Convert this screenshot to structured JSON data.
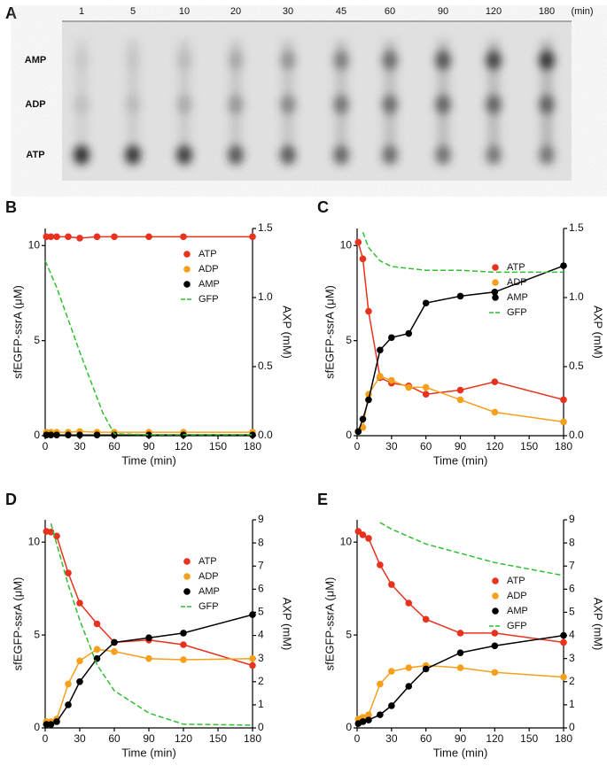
{
  "gel": {
    "panel": "A",
    "lanes": [
      "1",
      "5",
      "10",
      "20",
      "30",
      "45",
      "60",
      "90",
      "120",
      "180"
    ],
    "unit": "(min)",
    "bands": [
      "AMP",
      "ADP",
      "ATP"
    ]
  },
  "chart_data": [
    {
      "type": "line",
      "panel": "B",
      "xlabel": "Time (min)",
      "ylabel": "sfEGFP-ssrA (μM)",
      "y2label": "AXP (mM)",
      "x": [
        1,
        5,
        10,
        20,
        30,
        45,
        60,
        90,
        120,
        180
      ],
      "xlim": [
        0,
        180
      ],
      "xticks": [
        0,
        30,
        60,
        90,
        120,
        150,
        180
      ],
      "ylim": [
        0,
        10.9
      ],
      "yticks": [
        0,
        5,
        10
      ],
      "y2lim": [
        0,
        1.5
      ],
      "y2ticks": [
        {
          "value": 0,
          "label": "0.0"
        },
        0.5,
        {
          "value": 1,
          "label": "1.0"
        },
        1.5
      ],
      "series": [
        {
          "name": "ATP",
          "color": "#e8321e",
          "axis": "y2",
          "values": [
            1.44,
            1.44,
            1.44,
            1.44,
            1.43,
            1.44,
            1.44,
            1.44,
            1.44,
            1.44
          ]
        },
        {
          "name": "ADP",
          "color": "#f5a01a",
          "axis": "y2",
          "values": [
            0.025,
            0.025,
            0.025,
            0.025,
            0.03,
            0.025,
            0.025,
            0.025,
            0.025,
            0.025
          ]
        },
        {
          "name": "AMP",
          "color": "#000000",
          "axis": "y2",
          "values": [
            0.005,
            0.005,
            0.005,
            0.005,
            0.005,
            0.005,
            0.005,
            0.005,
            0.005,
            0.005
          ]
        },
        {
          "name": "GFP",
          "color": "#2fbf2f",
          "dashed": true,
          "x": [
            0,
            10,
            20,
            30,
            40,
            50,
            60,
            90,
            120,
            180
          ],
          "values": [
            9.2,
            7.8,
            6.1,
            4.4,
            2.8,
            1.2,
            0.1,
            0.05,
            0.05,
            0.05
          ]
        }
      ]
    },
    {
      "type": "line",
      "panel": "C",
      "xlabel": "Time (min)",
      "ylabel": "sfEGFP-ssrA (μM)",
      "y2label": "AXP (mM)",
      "x": [
        1,
        5,
        10,
        20,
        30,
        45,
        60,
        90,
        120,
        180
      ],
      "xlim": [
        0,
        180
      ],
      "xticks": [
        0,
        30,
        60,
        90,
        120,
        150,
        180
      ],
      "ylim": [
        0,
        10.9
      ],
      "yticks": [
        0,
        5,
        10
      ],
      "y2lim": [
        0,
        1.5
      ],
      "y2ticks": [
        {
          "value": 0,
          "label": "0.0"
        },
        0.5,
        {
          "value": 1,
          "label": "1.0"
        },
        1.5
      ],
      "series": [
        {
          "name": "ATP",
          "color": "#e8321e",
          "axis": "y2",
          "values": [
            1.4,
            1.28,
            0.9,
            0.42,
            0.38,
            0.36,
            0.3,
            0.33,
            0.39,
            0.26
          ]
        },
        {
          "name": "ADP",
          "color": "#f5a01a",
          "axis": "y2",
          "values": [
            0.03,
            0.06,
            0.3,
            0.43,
            0.4,
            0.35,
            0.35,
            0.26,
            0.17,
            0.1
          ]
        },
        {
          "name": "AMP",
          "color": "#000000",
          "axis": "y2",
          "values": [
            0.03,
            0.12,
            0.26,
            0.62,
            0.71,
            0.74,
            0.96,
            1.01,
            1.04,
            1.23
          ]
        },
        {
          "name": "GFP",
          "color": "#2fbf2f",
          "dashed": true,
          "x": [
            5,
            10,
            20,
            30,
            45,
            60,
            90,
            120,
            180
          ],
          "values": [
            10.7,
            9.9,
            9.2,
            8.9,
            8.8,
            8.7,
            8.7,
            8.6,
            8.6
          ]
        }
      ]
    },
    {
      "type": "line",
      "panel": "D",
      "xlabel": "Time (min)",
      "ylabel": "sfEGFP-ssrA (μM)",
      "y2label": "AXP (mM)",
      "x": [
        1,
        5,
        10,
        20,
        30,
        45,
        60,
        90,
        120,
        180
      ],
      "xlim": [
        0,
        180
      ],
      "xticks": [
        0,
        30,
        60,
        90,
        120,
        150,
        180
      ],
      "ylim": [
        0,
        11.2
      ],
      "yticks": [
        0,
        5,
        10
      ],
      "y2lim": [
        0,
        9
      ],
      "y2ticks": [
        0,
        1,
        2,
        3,
        4,
        5,
        6,
        7,
        8,
        9
      ],
      "series": [
        {
          "name": "ATP",
          "color": "#e8321e",
          "axis": "y2",
          "values": [
            8.5,
            8.47,
            8.3,
            6.7,
            5.4,
            4.5,
            3.7,
            3.8,
            3.6,
            2.7
          ]
        },
        {
          "name": "ADP",
          "color": "#f5a01a",
          "axis": "y2",
          "values": [
            0.27,
            0.27,
            0.38,
            1.9,
            2.9,
            3.4,
            3.3,
            3.0,
            2.95,
            3.0
          ]
        },
        {
          "name": "AMP",
          "color": "#000000",
          "axis": "y2",
          "values": [
            0.15,
            0.15,
            0.27,
            1.0,
            2.0,
            3.0,
            3.7,
            3.9,
            4.1,
            4.9
          ]
        },
        {
          "name": "GFP",
          "color": "#2fbf2f",
          "dashed": true,
          "x": [
            5,
            20,
            30,
            45,
            60,
            90,
            120,
            180
          ],
          "values": [
            11.0,
            7.7,
            5.8,
            3.4,
            2.0,
            0.8,
            0.2,
            0.15
          ]
        }
      ]
    },
    {
      "type": "line",
      "panel": "E",
      "xlabel": "Time (min)",
      "ylabel": "sfEGFP-ssrA (μM)",
      "y2label": "AXP (mM)",
      "x": [
        1,
        5,
        10,
        20,
        30,
        45,
        60,
        90,
        120,
        180
      ],
      "xlim": [
        0,
        180
      ],
      "xticks": [
        0,
        30,
        60,
        90,
        120,
        150,
        180
      ],
      "ylim": [
        0,
        11.2
      ],
      "yticks": [
        0,
        5,
        10
      ],
      "y2lim": [
        0,
        9
      ],
      "y2ticks": [
        0,
        1,
        2,
        3,
        4,
        5,
        6,
        7,
        8,
        9
      ],
      "series": [
        {
          "name": "ATP",
          "color": "#e8321e",
          "axis": "y2",
          "values": [
            8.5,
            8.35,
            8.2,
            7.05,
            6.2,
            5.4,
            4.7,
            4.1,
            4.1,
            3.7
          ]
        },
        {
          "name": "ADP",
          "color": "#f5a01a",
          "axis": "y2",
          "values": [
            0.38,
            0.46,
            0.57,
            1.9,
            2.45,
            2.6,
            2.7,
            2.6,
            2.4,
            2.2
          ]
        },
        {
          "name": "AMP",
          "color": "#000000",
          "axis": "y2",
          "values": [
            0.19,
            0.27,
            0.34,
            0.57,
            0.96,
            1.8,
            2.55,
            3.25,
            3.55,
            4.0
          ]
        },
        {
          "name": "GFP",
          "color": "#2fbf2f",
          "dashed": true,
          "x": [
            20,
            30,
            60,
            90,
            120,
            180
          ],
          "values": [
            11.05,
            10.7,
            9.9,
            9.4,
            8.9,
            8.2
          ]
        }
      ]
    }
  ]
}
